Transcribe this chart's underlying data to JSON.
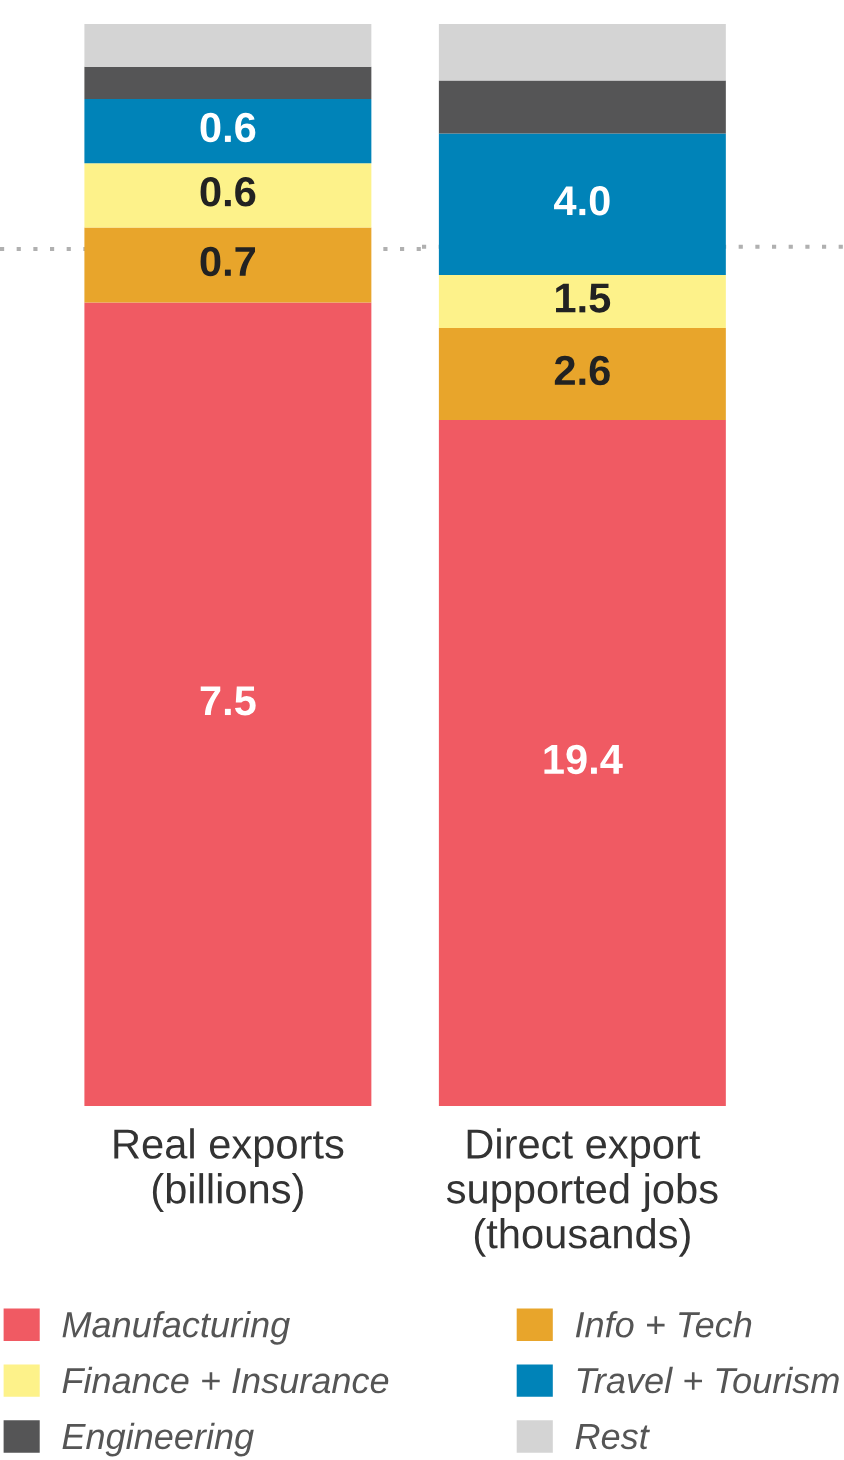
{
  "chart_data": [
    {
      "type": "bar",
      "stacked": true,
      "categories": [
        "Real exports\n(billions)"
      ],
      "legend": "bottom",
      "tick_labels": "x",
      "series": [
        {
          "name": "Manufacturing",
          "color": "#f05a63",
          "values": [
            7.5
          ],
          "value_labels": [
            "7.5"
          ]
        },
        {
          "name": "Info + Tech",
          "color": "#e8a52b",
          "values": [
            0.7
          ],
          "value_labels": [
            "0.7"
          ]
        },
        {
          "name": "Finance + Insurance",
          "color": "#fdf28a",
          "values": [
            0.6
          ],
          "value_labels": [
            "0.6"
          ]
        },
        {
          "name": "Travel + Tourism",
          "color": "#0083b8",
          "values": [
            0.6
          ],
          "value_labels": [
            "0.6"
          ]
        },
        {
          "name": "Engineering",
          "color": "#555556",
          "values": [
            0.3
          ],
          "value_labels": [
            null
          ]
        },
        {
          "name": "Rest",
          "color": "#d4d4d4",
          "values": [
            0.4
          ],
          "value_labels": [
            null
          ]
        }
      ],
      "ref_lines": [
        {
          "axis": "y",
          "value": 8.0,
          "line_style": "dotted",
          "color": "#b0b0b0"
        }
      ]
    },
    {
      "type": "bar",
      "stacked": true,
      "categories": [
        "Direct export\nsupported jobs\n(thousands)"
      ],
      "tick_labels": "x",
      "series": [
        {
          "color": "#f05a63",
          "values": [
            19.4
          ],
          "value_labels": [
            "19.4"
          ]
        },
        {
          "color": "#e8a52b",
          "values": [
            2.6
          ],
          "value_labels": [
            "2.6"
          ]
        },
        {
          "color": "#fdf28a",
          "values": [
            1.5
          ],
          "value_labels": [
            "1.5"
          ]
        },
        {
          "color": "#0083b8",
          "values": [
            4.0
          ],
          "value_labels": [
            "4.0"
          ]
        },
        {
          "color": "#555556",
          "values": [
            1.5
          ],
          "value_labels": [
            null
          ]
        },
        {
          "color": "#d4d4d4",
          "values": [
            1.6
          ],
          "value_labels": [
            null
          ]
        }
      ],
      "ref_lines": [
        {
          "axis": "y",
          "value": 24.3,
          "line_style": "dotted",
          "color": "#b0b0b0"
        }
      ]
    }
  ]
}
